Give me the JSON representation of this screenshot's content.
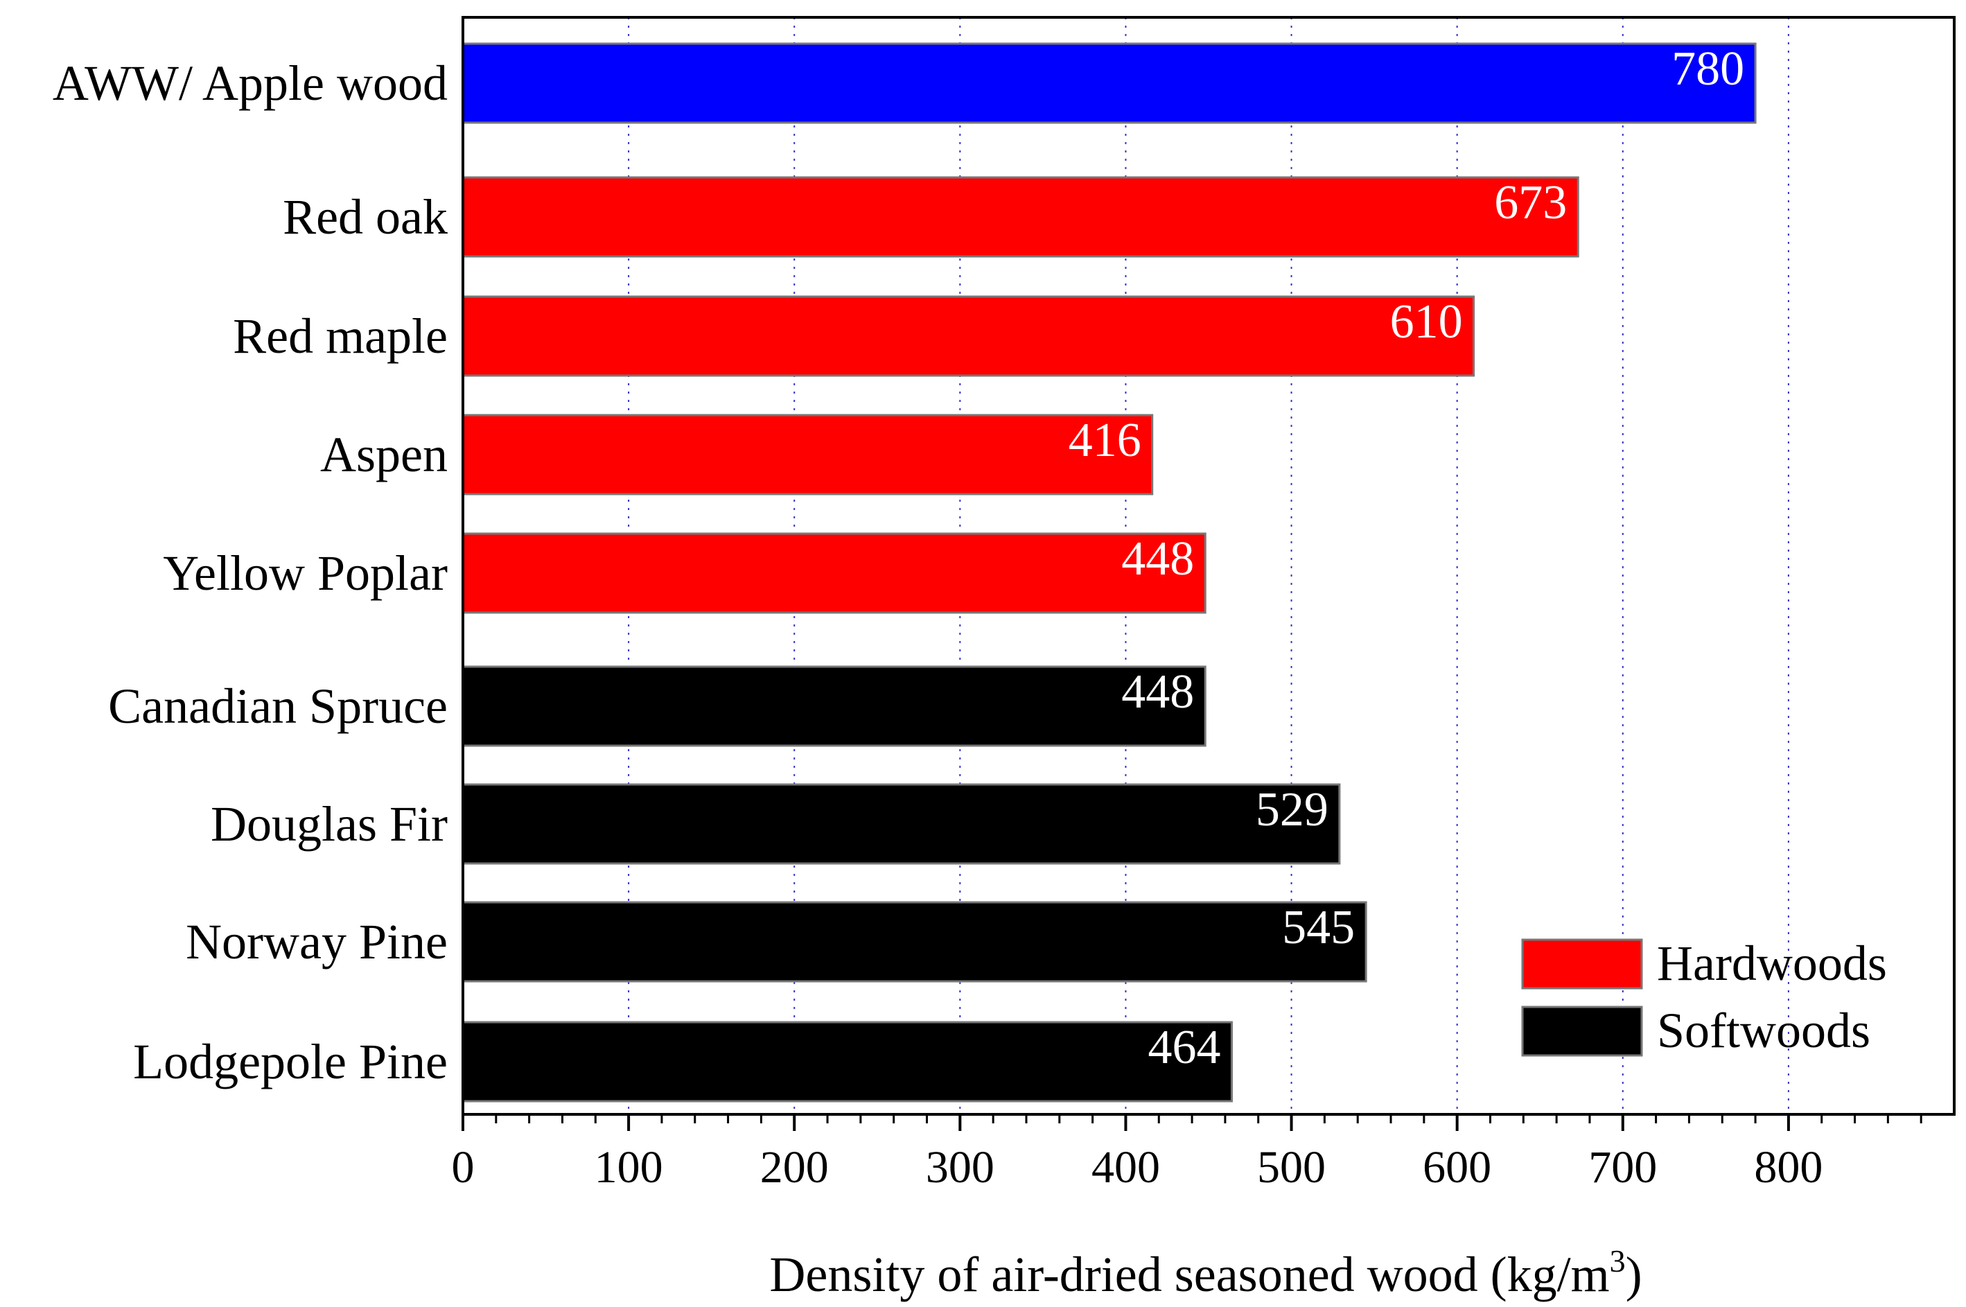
{
  "chart_data": {
    "type": "bar",
    "orientation": "horizontal",
    "title": "",
    "xlabel": "Density of air-dried seasoned wood (kg/m",
    "xlabel_superscript": "3",
    "xlabel_suffix": ")",
    "ylabel": "",
    "xlim": [
      0,
      900
    ],
    "xticks": [
      0,
      100,
      200,
      300,
      400,
      500,
      600,
      700,
      800
    ],
    "grid": "vertical dotted",
    "categories": [
      "AWW/ Apple wood",
      "Red oak",
      "Red maple",
      "Aspen",
      "Yellow  Poplar",
      "Canadian Spruce",
      "Douglas Fir",
      "Norway Pine",
      "Lodgepole Pine"
    ],
    "values": [
      780,
      673,
      610,
      416,
      448,
      448,
      529,
      545,
      464
    ],
    "groups": [
      "AWW",
      "Hardwoods",
      "Hardwoods",
      "Hardwoods",
      "Hardwoods",
      "Softwoods",
      "Softwoods",
      "Softwoods",
      "Softwoods"
    ],
    "colors": {
      "AWW": "#0000ff",
      "Hardwoods": "#ff0000",
      "Softwoods": "#000000"
    },
    "legend": {
      "placement": "bottom-right",
      "entries": [
        {
          "label": "Hardwoods",
          "color": "#ff0000"
        },
        {
          "label": "Softwoods",
          "color": "#000000"
        }
      ]
    }
  }
}
